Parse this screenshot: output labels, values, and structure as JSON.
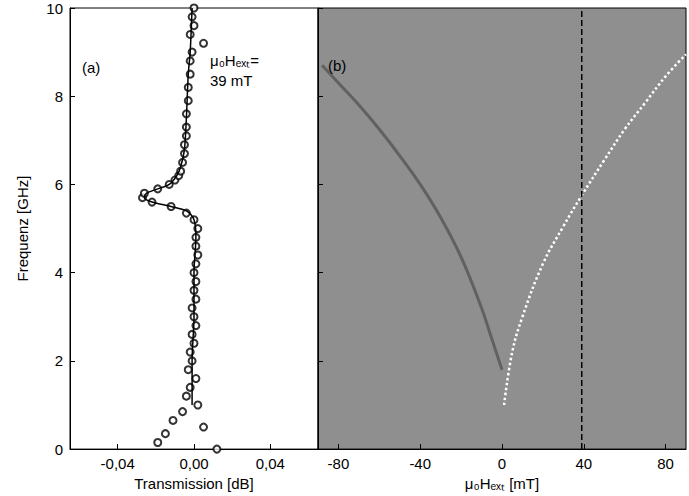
{
  "chart_data": [
    {
      "type": "scatter",
      "x_label": "Transmission [dB]",
      "y_label": "Frequenz [GHz]",
      "xlim": [
        -0.065,
        0.065
      ],
      "xticks": [
        {
          "value": -0.04,
          "label": "-0,04"
        },
        {
          "value": 0,
          "label": "0,00"
        },
        {
          "value": 0.04,
          "label": "0,04"
        }
      ],
      "ylim": [
        0,
        10
      ],
      "yticks": [
        0,
        2,
        4,
        6,
        8,
        10
      ],
      "annotations": [
        "(a)",
        "μ₀Hₑₓₜ=\n39 mT"
      ],
      "series": [
        {
          "type": "scatter",
          "marker": "open circle",
          "color": "#000000",
          "points": [
            [
              0.012,
              0.0
            ],
            [
              -0.019,
              0.15
            ],
            [
              -0.015,
              0.35
            ],
            [
              0.005,
              0.5
            ],
            [
              -0.011,
              0.65
            ],
            [
              -0.006,
              0.85
            ],
            [
              0.002,
              1.0
            ],
            [
              -0.004,
              1.2
            ],
            [
              -0.002,
              1.4
            ],
            [
              0.001,
              1.6
            ],
            [
              -0.003,
              1.8
            ],
            [
              -0.001,
              2.0
            ],
            [
              -0.002,
              2.2
            ],
            [
              0.0,
              2.4
            ],
            [
              -0.001,
              2.6
            ],
            [
              0.001,
              2.8
            ],
            [
              0.0,
              3.0
            ],
            [
              -0.001,
              3.2
            ],
            [
              0.001,
              3.4
            ],
            [
              0.0,
              3.6
            ],
            [
              0.001,
              3.8
            ],
            [
              0.0,
              4.0
            ],
            [
              0.001,
              4.2
            ],
            [
              0.002,
              4.4
            ],
            [
              0.001,
              4.6
            ],
            [
              0.001,
              4.8
            ],
            [
              0.002,
              5.0
            ],
            [
              0.0,
              5.2
            ],
            [
              -0.004,
              5.35
            ],
            [
              -0.012,
              5.5
            ],
            [
              -0.022,
              5.6
            ],
            [
              -0.027,
              5.7
            ],
            [
              -0.026,
              5.8
            ],
            [
              -0.019,
              5.9
            ],
            [
              -0.013,
              6.0
            ],
            [
              -0.01,
              6.1
            ],
            [
              -0.008,
              6.2
            ],
            [
              -0.007,
              6.3
            ],
            [
              -0.006,
              6.5
            ],
            [
              -0.005,
              6.7
            ],
            [
              -0.005,
              6.9
            ],
            [
              -0.004,
              7.1
            ],
            [
              -0.004,
              7.3
            ],
            [
              -0.004,
              7.6
            ],
            [
              -0.003,
              7.9
            ],
            [
              -0.003,
              8.2
            ],
            [
              -0.002,
              8.5
            ],
            [
              -0.002,
              8.8
            ],
            [
              -0.001,
              9.0
            ],
            [
              0.005,
              9.2
            ],
            [
              -0.002,
              9.4
            ],
            [
              0.0,
              9.6
            ],
            [
              -0.001,
              9.8
            ],
            [
              0.0,
              10.0
            ]
          ]
        },
        {
          "type": "line",
          "line_style": "solid",
          "color": "#000000",
          "points": [
            [
              -0.001,
              1.0
            ],
            [
              -0.001,
              2.0
            ],
            [
              0.0,
              3.0
            ],
            [
              0.0,
              4.0
            ],
            [
              0.001,
              4.8
            ],
            [
              0.0,
              5.2
            ],
            [
              -0.004,
              5.4
            ],
            [
              -0.012,
              5.5
            ],
            [
              -0.022,
              5.6
            ],
            [
              -0.026,
              5.7
            ],
            [
              -0.025,
              5.8
            ],
            [
              -0.019,
              5.9
            ],
            [
              -0.013,
              6.0
            ],
            [
              -0.009,
              6.2
            ],
            [
              -0.007,
              6.4
            ],
            [
              -0.005,
              6.8
            ],
            [
              -0.004,
              7.5
            ],
            [
              -0.003,
              8.5
            ],
            [
              -0.002,
              9.0
            ],
            [
              -0.001,
              10.0
            ]
          ]
        }
      ]
    },
    {
      "type": "line",
      "x_label": "μ₀Hₑₓₜ [mT]",
      "xlim": [
        -90,
        90
      ],
      "xticks": [
        -80,
        -40,
        0,
        40,
        80
      ],
      "ylim": [
        0,
        10
      ],
      "yticks": [
        0,
        2,
        4,
        6,
        8,
        10
      ],
      "tick_labels": "x",
      "annotations": [
        "(b)"
      ],
      "vline": 39,
      "vline_style": "dashed",
      "series": [
        {
          "type": "line",
          "line_style": "solid",
          "color": "#555555",
          "points": [
            [
              -88,
              8.7
            ],
            [
              -80,
              8.3
            ],
            [
              -70,
              7.8
            ],
            [
              -60,
              7.25
            ],
            [
              -50,
              6.65
            ],
            [
              -40,
              6.0
            ],
            [
              -30,
              5.25
            ],
            [
              -20,
              4.35
            ],
            [
              -10,
              3.2
            ],
            [
              -5,
              2.5
            ],
            [
              0,
              1.8
            ]
          ]
        },
        {
          "type": "line",
          "line_style": "dotted",
          "color": "#ffffff",
          "points": [
            [
              1,
              1.0
            ],
            [
              5,
              2.2
            ],
            [
              10,
              3.0
            ],
            [
              20,
              4.2
            ],
            [
              30,
              5.05
            ],
            [
              39,
              5.75
            ],
            [
              50,
              6.55
            ],
            [
              60,
              7.25
            ],
            [
              70,
              7.85
            ],
            [
              80,
              8.45
            ],
            [
              90,
              8.95
            ]
          ]
        }
      ]
    }
  ]
}
